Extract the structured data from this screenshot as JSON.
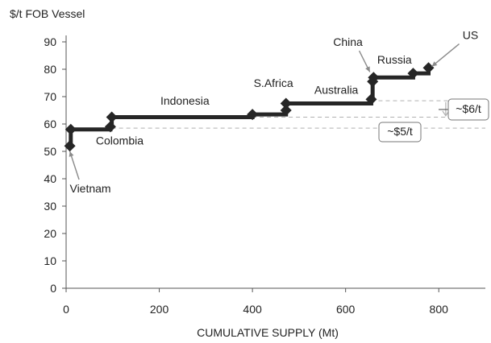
{
  "chart_data": {
    "type": "line",
    "ylabel": "$/t FOB Vessel",
    "xlabel": "CUMULATIVE SUPPLY (Mt)",
    "xlim": [
      0,
      900
    ],
    "ylim": [
      0,
      90
    ],
    "xticks": [
      0,
      200,
      400,
      600,
      800
    ],
    "yticks": [
      0,
      10,
      20,
      30,
      40,
      50,
      60,
      70,
      80,
      90
    ],
    "grid": false,
    "colors": {
      "curve": "#262626",
      "guide": "#b0b0b0",
      "axis": "#555555"
    },
    "series": [
      {
        "points": [
          {
            "x": 8,
            "y": 52
          },
          {
            "x": 10,
            "y": 58
          },
          {
            "x": 95,
            "y": 59
          },
          {
            "x": 98,
            "y": 62.5
          },
          {
            "x": 400,
            "y": 63.5
          },
          {
            "x": 472,
            "y": 65
          },
          {
            "x": 472,
            "y": 67.5
          },
          {
            "x": 655,
            "y": 69
          },
          {
            "x": 658,
            "y": 75.5
          },
          {
            "x": 660,
            "y": 77
          },
          {
            "x": 745,
            "y": 78.5
          },
          {
            "x": 778,
            "y": 80.5
          }
        ]
      }
    ],
    "country_labels": [
      {
        "text": "Vietnam",
        "x": 52,
        "y": 35,
        "arrow_to": {
          "x": 8,
          "y": 50
        }
      },
      {
        "text": "Colombia",
        "x": 115,
        "y": 52.5
      },
      {
        "text": "Indonesia",
        "x": 255,
        "y": 67
      },
      {
        "text": "S.Africa",
        "x": 445,
        "y": 73.5
      },
      {
        "text": "Australia",
        "x": 580,
        "y": 71
      },
      {
        "text": "China",
        "x": 605,
        "y": 88.5,
        "arrow_to": {
          "x": 652,
          "y": 79
        }
      },
      {
        "text": "Russia",
        "x": 705,
        "y": 82
      },
      {
        "text": "US",
        "x": 868,
        "y": 91,
        "arrow_to": {
          "x": 785,
          "y": 81
        }
      }
    ],
    "annotations": [
      {
        "text": "~$6/t",
        "from_y": 68.5,
        "to_y": 62.5
      },
      {
        "text": "~$5/t",
        "from_y": 63.5,
        "to_y": 58.5
      }
    ]
  }
}
